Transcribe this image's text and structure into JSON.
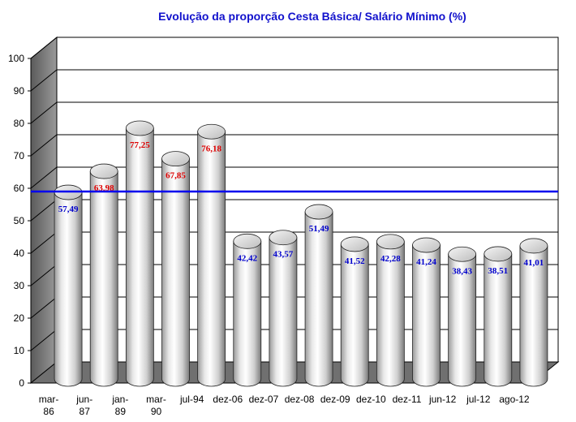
{
  "chart_data": {
    "type": "bar",
    "title": "Evolução da proporção Cesta Básica/ Salário Mínimo (%)",
    "xlabel": "",
    "ylabel": "",
    "ylim": [
      0,
      100
    ],
    "yticks": [
      0,
      10,
      20,
      30,
      40,
      50,
      60,
      70,
      80,
      90,
      100
    ],
    "grid": true,
    "categories": [
      [
        "mar-",
        "86"
      ],
      [
        "jun-",
        "87"
      ],
      [
        "jan-",
        "89"
      ],
      [
        "mar-",
        "90"
      ],
      [
        "jul-94"
      ],
      [
        "dez-06"
      ],
      [
        "dez-07"
      ],
      [
        "dez-08"
      ],
      [
        "dez-09"
      ],
      [
        "dez-10"
      ],
      [
        "dez-11"
      ],
      [
        "jun-12"
      ],
      [
        "jul-12"
      ],
      [
        "ago-12"
      ]
    ],
    "values": [
      57.49,
      63.98,
      77.25,
      67.85,
      76.18,
      42.42,
      43.57,
      51.49,
      41.52,
      42.28,
      41.24,
      38.43,
      38.51,
      41.01
    ],
    "value_labels": [
      "57,49",
      "63,98",
      "77,25",
      "67,85",
      "76,18",
      "42,42",
      "43,57",
      "51,49",
      "41,52",
      "42,28",
      "41,24",
      "38,43",
      "38,51",
      "41,01"
    ],
    "reference_line": 59,
    "colors": {
      "label_above_reference": "#dd0000",
      "label_below_reference": "#0000cc",
      "reference_line": "#0000ee",
      "title": "#1111cc"
    }
  }
}
